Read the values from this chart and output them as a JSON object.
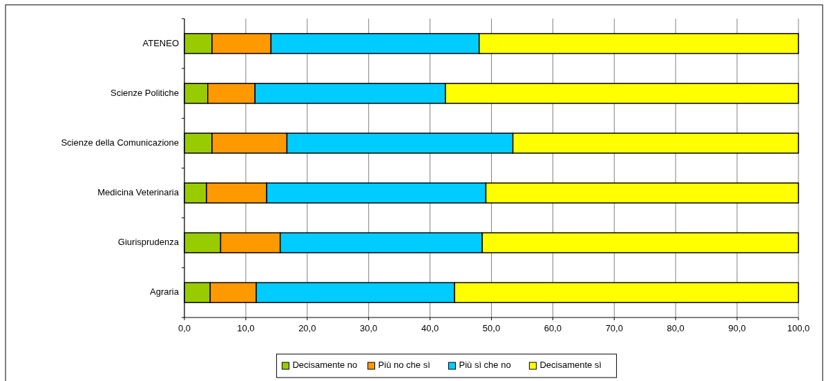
{
  "chart_data": {
    "type": "bar",
    "orientation": "horizontal",
    "stacked": true,
    "categories": [
      "ATENEO",
      "Scienze Politiche",
      "Scienze della Comunicazione",
      "Medicina Veterinaria",
      "Giurisprudenza",
      "Agraria"
    ],
    "series": [
      {
        "name": "Decisamente no",
        "color": "#99cc00",
        "values": [
          4.5,
          3.8,
          4.5,
          3.6,
          5.9,
          4.2
        ]
      },
      {
        "name": "Più no che sì",
        "color": "#ff9900",
        "values": [
          9.6,
          7.7,
          12.2,
          9.8,
          9.7,
          7.5
        ]
      },
      {
        "name": "Più sì che no",
        "color": "#00ccff",
        "values": [
          33.9,
          31.0,
          36.8,
          35.7,
          32.9,
          32.3
        ]
      },
      {
        "name": "Decisamente sì",
        "color": "#ffff00",
        "values": [
          52.0,
          57.5,
          46.5,
          50.9,
          51.5,
          56.0
        ]
      }
    ],
    "xlim": [
      0,
      100
    ],
    "xticks": [
      {
        "value": 0,
        "label": "0,0"
      },
      {
        "value": 10,
        "label": "10,0"
      },
      {
        "value": 20,
        "label": "20,0"
      },
      {
        "value": 30,
        "label": "30,0"
      },
      {
        "value": 40,
        "label": "40,0"
      },
      {
        "value": 50,
        "label": "50,0"
      },
      {
        "value": 60,
        "label": "60,0"
      },
      {
        "value": 70,
        "label": "70,0"
      },
      {
        "value": 80,
        "label": "80,0"
      },
      {
        "value": 90,
        "label": "90,0"
      },
      {
        "value": 100,
        "label": "100,0"
      }
    ],
    "grid": "x",
    "legend": "bottom"
  }
}
